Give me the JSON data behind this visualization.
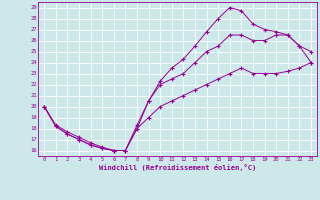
{
  "xlabel": "Windchill (Refroidissement éolien,°C)",
  "xlim": [
    -0.5,
    23.5
  ],
  "ylim": [
    15.5,
    29.5
  ],
  "xticks": [
    0,
    1,
    2,
    3,
    4,
    5,
    6,
    7,
    8,
    9,
    10,
    11,
    12,
    13,
    14,
    15,
    16,
    17,
    18,
    19,
    20,
    21,
    22,
    23
  ],
  "yticks": [
    16,
    17,
    18,
    19,
    20,
    21,
    22,
    23,
    24,
    25,
    26,
    27,
    28,
    29
  ],
  "bg_color": "#cce8e8",
  "line_color": "#990099",
  "grid_color": "#ffffff",
  "line1_x": [
    0,
    1,
    2,
    3,
    4,
    5,
    6,
    7,
    8,
    9,
    10,
    11,
    12,
    13,
    14,
    15,
    16,
    17,
    18,
    19,
    20,
    21,
    22,
    23
  ],
  "line1_y": [
    20.0,
    18.2,
    17.5,
    17.0,
    16.5,
    16.2,
    16.0,
    16.0,
    18.0,
    19.0,
    20.0,
    20.5,
    21.0,
    21.5,
    22.0,
    22.5,
    23.0,
    23.5,
    23.0,
    23.0,
    23.0,
    23.2,
    23.5,
    24.0
  ],
  "line2_x": [
    0,
    1,
    2,
    3,
    4,
    5,
    6,
    7,
    8,
    9,
    10,
    11,
    12,
    13,
    14,
    15,
    16,
    17,
    18,
    19,
    20,
    21,
    22,
    23
  ],
  "line2_y": [
    20.0,
    18.3,
    17.7,
    17.2,
    16.7,
    16.3,
    16.0,
    16.0,
    18.3,
    20.5,
    22.0,
    22.5,
    23.0,
    24.0,
    25.0,
    25.5,
    26.5,
    26.5,
    26.0,
    26.0,
    26.5,
    26.5,
    25.5,
    25.0
  ],
  "line3_x": [
    0,
    1,
    2,
    3,
    4,
    5,
    6,
    7,
    8,
    9,
    10,
    11,
    12,
    13,
    14,
    15,
    16,
    17,
    18,
    19,
    20,
    21,
    22,
    23
  ],
  "line3_y": [
    20.0,
    18.2,
    17.5,
    17.0,
    16.5,
    16.2,
    16.0,
    16.0,
    18.0,
    20.5,
    22.3,
    23.5,
    24.3,
    25.5,
    26.8,
    28.0,
    29.0,
    28.7,
    27.5,
    27.0,
    26.8,
    26.5,
    25.5,
    24.0
  ]
}
